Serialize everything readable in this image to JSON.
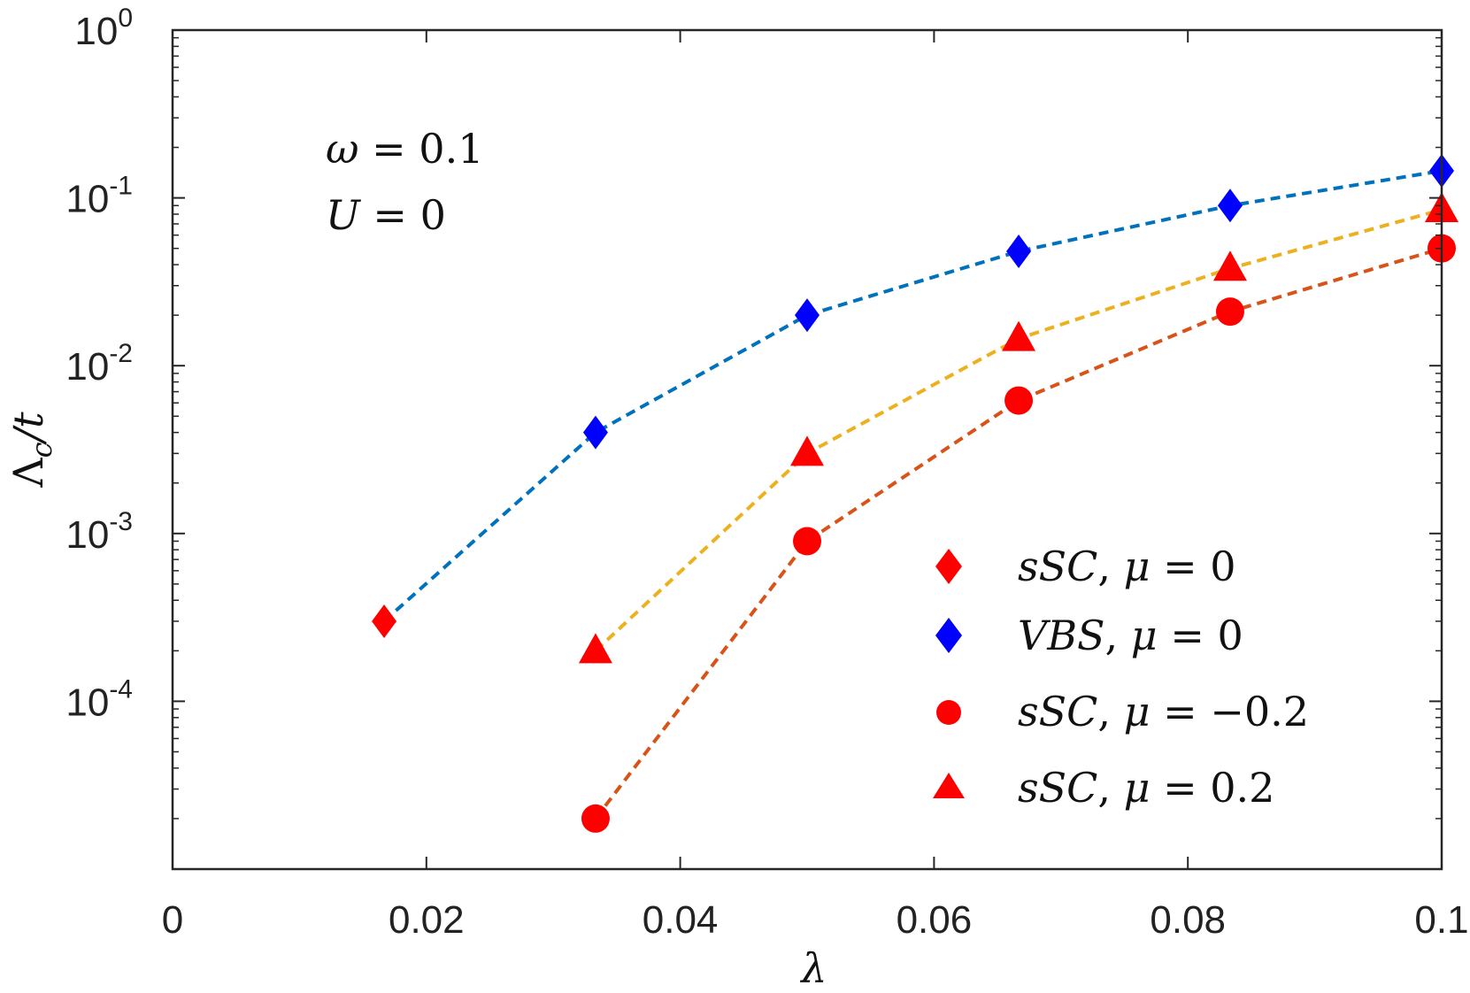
{
  "chart_data": {
    "type": "scatter",
    "title": "",
    "xlabel": "λ",
    "ylabel_parts": {
      "main": "Λ",
      "sub": "c",
      "rest": "/t"
    },
    "xscale": "linear",
    "yscale": "log",
    "xlim": [
      0,
      0.1
    ],
    "ylim": [
      1e-05,
      1
    ],
    "x_ticks": [
      {
        "value": 0,
        "label": "0"
      },
      {
        "value": 0.02,
        "label": "0.02"
      },
      {
        "value": 0.04,
        "label": "0.04"
      },
      {
        "value": 0.06,
        "label": "0.06"
      },
      {
        "value": 0.08,
        "label": "0.08"
      },
      {
        "value": 0.1,
        "label": "0.1"
      }
    ],
    "y_ticks": [
      {
        "exp": -4,
        "base": "10",
        "power": "-4"
      },
      {
        "exp": -3,
        "base": "10",
        "power": "-3"
      },
      {
        "exp": -2,
        "base": "10",
        "power": "-2"
      },
      {
        "exp": -1,
        "base": "10",
        "power": "-1"
      },
      {
        "exp": 0,
        "base": "10",
        "power": "0"
      }
    ],
    "annotations": [
      {
        "var": "ω",
        "eq": " = 0.1"
      },
      {
        "var": "U",
        "eq": " = 0"
      }
    ],
    "legend_position": "bottom-right",
    "series": [
      {
        "name": "sSC, μ = 0",
        "legend": {
          "a": "sSC",
          "b": "μ",
          "c": " = 0"
        },
        "marker": "diamond",
        "marker_color": "#ff0000",
        "line_color": null,
        "x": [
          0.01667
        ],
        "y": [
          0.0003
        ]
      },
      {
        "name": "VBS, μ = 0",
        "legend": {
          "a": "VBS",
          "b": "μ",
          "c": " = 0"
        },
        "marker": "diamond",
        "marker_color": "#0000ff",
        "line_color": "#0072bd",
        "line_start": [
          0.01667,
          0.0003
        ],
        "x": [
          0.03333,
          0.05,
          0.06667,
          0.08333,
          0.1
        ],
        "y": [
          0.004,
          0.02,
          0.048,
          0.09,
          0.145
        ]
      },
      {
        "name": "sSC, μ = −0.2",
        "legend": {
          "a": "sSC",
          "b": "μ",
          "c": " = −0.2"
        },
        "marker": "circle",
        "marker_color": "#ff0000",
        "line_color": "#d95319",
        "x": [
          0.03333,
          0.05,
          0.06667,
          0.08333,
          0.1
        ],
        "y": [
          2e-05,
          0.0009,
          0.0062,
          0.021,
          0.05
        ]
      },
      {
        "name": "sSC, μ = 0.2",
        "legend": {
          "a": "sSC",
          "b": "μ",
          "c": " = 0.2"
        },
        "marker": "triangle",
        "marker_color": "#ff0000",
        "line_color": "#edb120",
        "x": [
          0.03333,
          0.05,
          0.06667,
          0.08333,
          0.1
        ],
        "y": [
          0.0002,
          0.003,
          0.0145,
          0.038,
          0.085
        ]
      }
    ]
  }
}
